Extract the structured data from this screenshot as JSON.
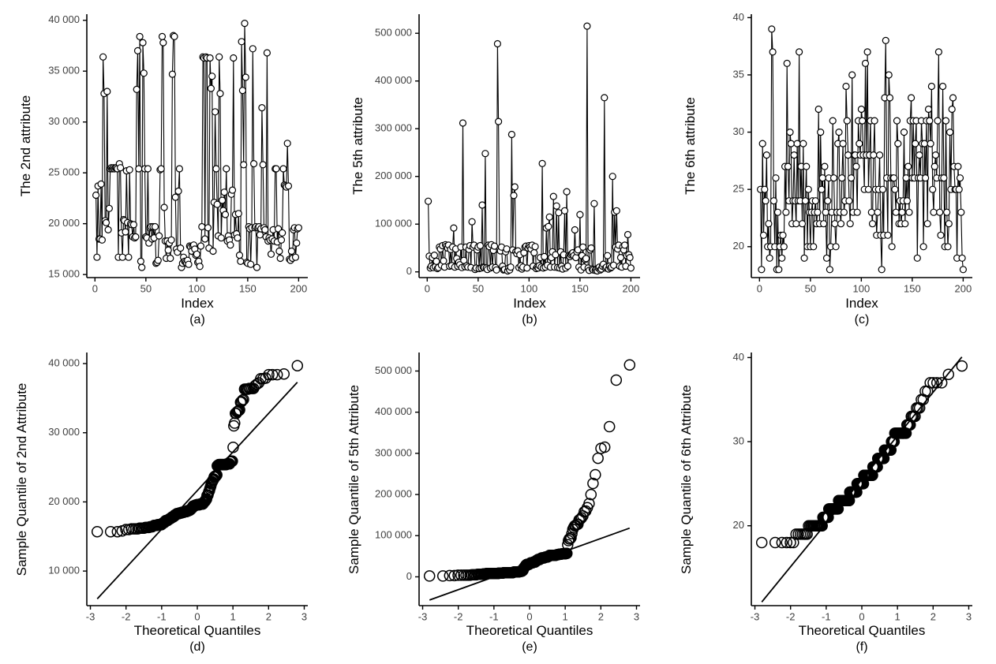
{
  "figure": {
    "background": "#ffffff",
    "series_color": "#000000",
    "tick_label_color": "#404040",
    "layout": "2 rows x 3 columns",
    "top_row_type": "index line plots with open-circle markers",
    "bottom_row_type": "normal Q-Q plots with open-circle markers and quartile reference line"
  },
  "chart_data": [
    {
      "id": "a",
      "type": "line",
      "caption": "(a)",
      "xlabel": "Index",
      "ylabel": "The 2nd attribute",
      "marker": "open-circle",
      "color": "#000000",
      "grid": false,
      "legend": false,
      "n": 200,
      "x_start": 1,
      "xlim": [
        -8,
        209
      ],
      "ylim": [
        14700,
        40600
      ],
      "xticks": [
        0,
        50,
        100,
        150,
        200
      ],
      "yticks": [
        15000,
        20000,
        25000,
        30000,
        35000,
        40000
      ],
      "ytick_labels": [
        "15 000",
        "20 000",
        "25 000",
        "30 000",
        "35 000",
        "40 000"
      ],
      "values": [
        22800,
        16700,
        23700,
        18500,
        18500,
        23900,
        18400,
        36400,
        32800,
        20300,
        20100,
        33000,
        19400,
        21500,
        25400,
        25500,
        25400,
        25500,
        25400,
        25500,
        25500,
        25400,
        16700,
        25900,
        25500,
        19100,
        16700,
        20400,
        20300,
        19200,
        25200,
        20100,
        16700,
        25300,
        20000,
        19900,
        18700,
        19900,
        18600,
        18700,
        33200,
        37000,
        25400,
        38400,
        16300,
        15700,
        37800,
        34800,
        25400,
        18700,
        18600,
        25400,
        18100,
        19600,
        19700,
        18500,
        19700,
        18600,
        19700,
        16100,
        16200,
        16400,
        18800,
        25300,
        25400,
        38400,
        37800,
        21600,
        18300,
        16600,
        18300,
        17400,
        18100,
        16600,
        18400,
        34700,
        38500,
        38400,
        22600,
        17500,
        17200,
        23200,
        25400,
        17600,
        15700,
        16100,
        16700,
        16300,
        16200,
        16100,
        16400,
        16000,
        17800,
        17700,
        17300,
        17800,
        17900,
        17500,
        16900,
        17000,
        16200,
        16300,
        15800,
        17800,
        19700,
        36400,
        36300,
        18500,
        36400,
        36300,
        19600,
        17600,
        36300,
        33300,
        34500,
        17300,
        22100,
        31000,
        25400,
        21900,
        18800,
        36400,
        32800,
        18600,
        22300,
        21300,
        23100,
        20900,
        25400,
        18300,
        18800,
        18400,
        17900,
        22900,
        23300,
        36300,
        18900,
        20900,
        19000,
        18600,
        21000,
        16900,
        16300,
        37900,
        33100,
        25800,
        39700,
        34400,
        16200,
        16100,
        19700,
        19500,
        16000,
        19600,
        37200,
        25900,
        19600,
        19700,
        15700,
        19600,
        19700,
        18900,
        19500,
        31400,
        25800,
        19600,
        19400,
        18700,
        36800,
        18300,
        18600,
        18400,
        17000,
        18500,
        19400,
        18300,
        25400,
        25400,
        18200,
        19500,
        17300,
        16600,
        18400,
        19100,
        25400,
        23800,
        23700,
        23600,
        27900,
        23700,
        16500,
        16400,
        17300,
        16600,
        19400,
        19600,
        16700,
        18100,
        19500,
        19600
      ]
    },
    {
      "id": "b",
      "type": "line",
      "caption": "(b)",
      "xlabel": "Index",
      "ylabel": "The 5th attribute",
      "marker": "open-circle",
      "color": "#000000",
      "grid": false,
      "legend": false,
      "n": 200,
      "x_start": 1,
      "xlim": [
        -8,
        209
      ],
      "ylim": [
        -12000,
        540000
      ],
      "xticks": [
        0,
        50,
        100,
        150,
        200
      ],
      "yticks": [
        0,
        100000,
        200000,
        300000,
        400000,
        500000
      ],
      "ytick_labels": [
        "0",
        "100 000",
        "200 000",
        "300 000",
        "400 000",
        "500 000"
      ],
      "values": [
        148000,
        33000,
        8000,
        12000,
        30000,
        9000,
        35000,
        11000,
        22000,
        7000,
        9000,
        52000,
        48000,
        14000,
        55000,
        23000,
        10000,
        57000,
        54000,
        50000,
        56000,
        12000,
        47000,
        13000,
        52000,
        92000,
        10000,
        48000,
        28000,
        12000,
        20000,
        15000,
        52000,
        9000,
        312000,
        24000,
        11000,
        52000,
        13000,
        10000,
        47000,
        55000,
        9000,
        105000,
        52000,
        56000,
        5000,
        8000,
        46000,
        52000,
        7000,
        55000,
        8000,
        140000,
        10000,
        9000,
        248000,
        8000,
        5000,
        56000,
        53000,
        8000,
        57000,
        10000,
        45000,
        54000,
        9000,
        4000,
        478000,
        315000,
        46000,
        44000,
        52000,
        12000,
        4000,
        5000,
        42000,
        48000,
        2000,
        8000,
        4000,
        10000,
        288000,
        46000,
        160000,
        178000,
        42000,
        38000,
        44000,
        9000,
        36000,
        13000,
        6000,
        10000,
        40000,
        52000,
        54000,
        8000,
        50000,
        55000,
        52000,
        48000,
        56000,
        12000,
        40000,
        53000,
        7000,
        10000,
        8000,
        13000,
        30000,
        10000,
        227000,
        8000,
        32000,
        10000,
        92000,
        14000,
        95000,
        115000,
        10000,
        30000,
        42000,
        158000,
        10000,
        36000,
        138000,
        9000,
        124000,
        8000,
        42000,
        12000,
        6000,
        36000,
        128000,
        8000,
        168000,
        12000,
        34000,
        32000,
        36000,
        38000,
        40000,
        34000,
        88000,
        30000,
        42000,
        46000,
        10000,
        120000,
        4000,
        34000,
        52000,
        10000,
        26000,
        28000,
        515000,
        8000,
        3000,
        46000,
        50000,
        6000,
        4000,
        143000,
        3000,
        5000,
        2000,
        8000,
        10000,
        4000,
        6000,
        12000,
        16000,
        365000,
        8000,
        10000,
        34000,
        6000,
        12000,
        8000,
        10000,
        200000,
        14000,
        125000,
        52000,
        128000,
        48000,
        56000,
        12000,
        30000,
        10000,
        52000,
        46000,
        56000,
        12000,
        34000,
        78000,
        36000,
        30000,
        8000
      ]
    },
    {
      "id": "c",
      "type": "line",
      "caption": "(c)",
      "xlabel": "Index",
      "ylabel": "The 6th attribute",
      "marker": "open-circle",
      "color": "#000000",
      "grid": false,
      "legend": false,
      "n": 200,
      "x_start": 1,
      "xlim": [
        -8,
        209
      ],
      "ylim": [
        17.3,
        40.3
      ],
      "xticks": [
        0,
        50,
        100,
        150,
        200
      ],
      "yticks": [
        20,
        25,
        30,
        35,
        40
      ],
      "ytick_labels": [
        "20",
        "25",
        "30",
        "35",
        "40"
      ],
      "values": [
        25,
        18,
        29,
        21,
        25,
        24,
        28,
        20,
        22,
        19,
        20,
        39,
        37,
        24,
        20,
        26,
        18,
        23,
        18,
        20,
        21,
        19,
        21,
        20,
        27,
        23,
        36,
        27,
        24,
        30,
        29,
        22,
        24,
        28,
        24,
        22,
        29,
        24,
        37,
        24,
        27,
        22,
        29,
        19,
        24,
        27,
        20,
        25,
        23,
        20,
        23,
        24,
        20,
        23,
        24,
        22,
        23,
        32,
        22,
        30,
        25,
        26,
        22,
        27,
        23,
        19,
        24,
        26,
        18,
        20,
        23,
        31,
        26,
        22,
        20,
        23,
        29,
        30,
        23,
        22,
        26,
        29,
        23,
        24,
        34,
        31,
        28,
        24,
        22,
        26,
        35,
        23,
        28,
        28,
        27,
        23,
        31,
        29,
        28,
        32,
        31,
        28,
        25,
        36,
        28,
        37,
        25,
        28,
        31,
        23,
        22,
        28,
        31,
        25,
        21,
        23,
        25,
        28,
        21,
        18,
        25,
        21,
        33,
        38,
        26,
        21,
        35,
        33,
        26,
        20,
        26,
        26,
        25,
        23,
        31,
        29,
        22,
        24,
        22,
        23,
        24,
        30,
        22,
        26,
        24,
        27,
        23,
        31,
        33,
        26,
        31,
        26,
        29,
        31,
        19,
        26,
        28,
        26,
        31,
        29,
        20,
        29,
        26,
        31,
        22,
        32,
        31,
        29,
        34,
        25,
        23,
        27,
        28,
        26,
        31,
        37,
        23,
        21,
        26,
        34,
        26,
        20,
        31,
        23,
        20,
        22,
        30,
        25,
        32,
        33,
        27,
        25,
        25,
        19,
        27,
        25,
        26,
        23,
        19,
        18
      ]
    },
    {
      "id": "d",
      "type": "qq",
      "caption": "(d)",
      "xlabel": "Theoretical Quantiles",
      "ylabel": "Sample Quantile of 2nd Attribute",
      "marker": "open-circle",
      "color": "#000000",
      "grid": false,
      "legend": false,
      "source": "a",
      "reference_line": "straight line through first and third sample quartiles",
      "xlim": [
        -3.1,
        3.1
      ],
      "ylim": [
        5000,
        41600
      ],
      "xticks": [
        -3,
        -2,
        -1,
        0,
        1,
        2,
        3
      ],
      "yticks": [
        10000,
        20000,
        30000,
        40000
      ],
      "ytick_labels": [
        "10 000",
        "20 000",
        "30 000",
        "40 000"
      ]
    },
    {
      "id": "e",
      "type": "qq",
      "caption": "(e)",
      "xlabel": "Theoretical Quantiles",
      "ylabel": "Sample Quantile of 5th Attribute",
      "marker": "open-circle",
      "color": "#000000",
      "grid": false,
      "legend": false,
      "source": "b",
      "reference_line": "straight line through first and third sample quartiles",
      "xlim": [
        -3.1,
        3.1
      ],
      "ylim": [
        -70000,
        545000
      ],
      "xticks": [
        -3,
        -2,
        -1,
        0,
        1,
        2,
        3
      ],
      "yticks": [
        0,
        100000,
        200000,
        300000,
        400000,
        500000
      ],
      "ytick_labels": [
        "0",
        "100 000",
        "200 000",
        "300 000",
        "400 000",
        "500 000"
      ]
    },
    {
      "id": "f",
      "type": "qq",
      "caption": "(f)",
      "xlabel": "Theoretical Quantiles",
      "ylabel": "Sample Quantile of 6th Attribute",
      "marker": "open-circle",
      "color": "#000000",
      "grid": false,
      "legend": false,
      "source": "c",
      "reference_line": "straight line through first and third sample quartiles",
      "xlim": [
        -3.1,
        3.1
      ],
      "ylim": [
        10.5,
        40.6
      ],
      "xticks": [
        -3,
        -2,
        -1,
        0,
        1,
        2,
        3
      ],
      "yticks": [
        20,
        30,
        40
      ],
      "ytick_labels": [
        "20",
        "30",
        "40"
      ]
    }
  ]
}
